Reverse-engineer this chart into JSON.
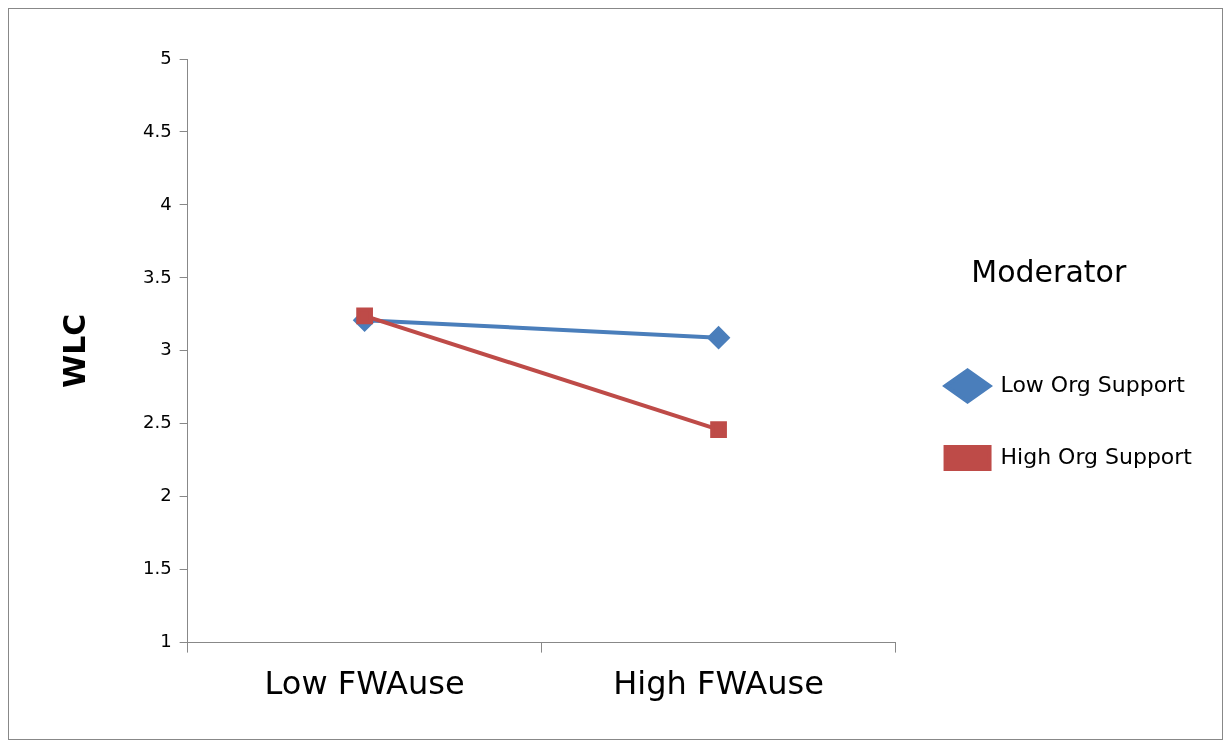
{
  "chart_data": {
    "type": "line",
    "ylabel": "WLC",
    "legend_title": "Moderator",
    "categories": [
      "Low FWAuse",
      "High FWAuse"
    ],
    "series": [
      {
        "name": "Low Org Support",
        "color": "#4a7ebb",
        "values": [
          3.21,
          3.09
        ],
        "marker": "diamond"
      },
      {
        "name": "High Org Support",
        "color": "#be4b48",
        "values": [
          3.24,
          2.46
        ],
        "marker": "square"
      }
    ],
    "ylim": [
      1,
      5
    ],
    "yticks": [
      1,
      1.5,
      2,
      2.5,
      3,
      3.5,
      4,
      4.5,
      5
    ],
    "grid": false,
    "legend": "right",
    "line_style": "solid"
  }
}
